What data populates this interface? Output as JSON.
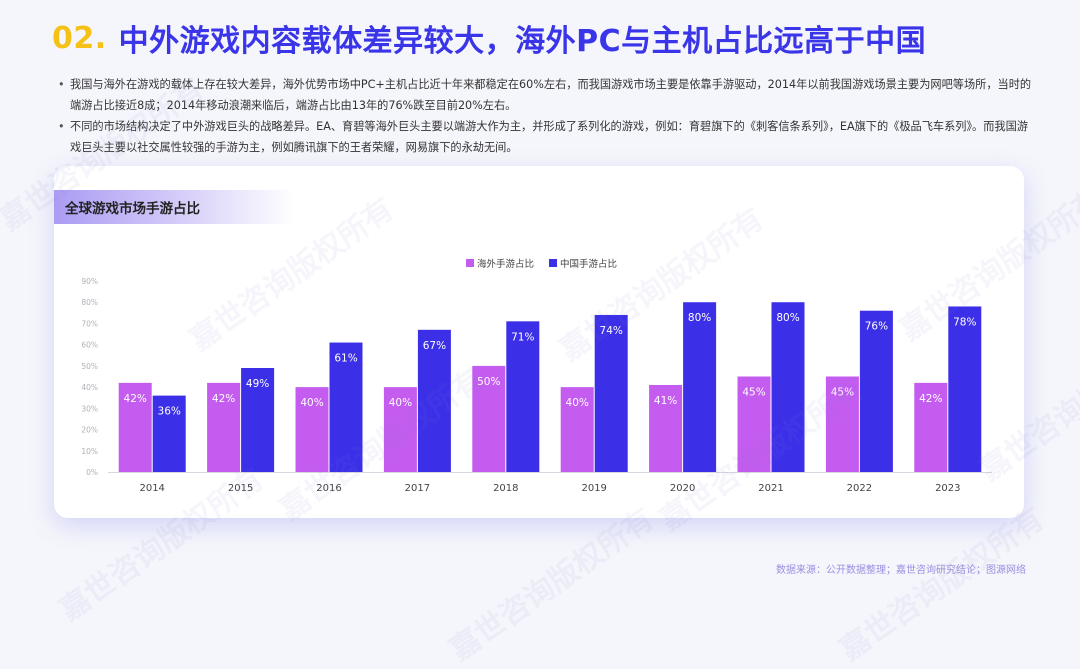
{
  "header": {
    "number": "02.",
    "title": "中外游戏内容载体差异较大，海外PC与主机占比远高于中国"
  },
  "bullets": [
    "我国与海外在游戏的载体上存在较大差异，海外优势市场中PC+主机占比近十年来都稳定在60%左右，而我国游戏市场主要是依靠手游驱动，2014年以前我国游戏场景主要为网吧等场所，当时的端游占比接近8成；2014年移动浪潮来临后，端游占比由13年的76%跌至目前20%左右。",
    "不同的市场结构决定了中外游戏巨头的战略差异。EA、育碧等海外巨头主要以端游大作为主，并形成了系列化的游戏，例如：育碧旗下的《刺客信条系列》，EA旗下的《极品飞车系列》。而我国游戏巨头主要以社交属性较强的手游为主，例如腾讯旗下的王者荣耀，网易旗下的永劫无间。"
  ],
  "card": {
    "title": "全球游戏市场手游占比"
  },
  "watermark": "嘉世咨询版权所有",
  "source": "数据来源：公开数据整理；嘉世咨询研究结论；图源网络",
  "colors": {
    "overseas": "#c45cf0",
    "china": "#3b30e8",
    "title_num": "#f5c116",
    "title_text": "#3a35e8"
  },
  "chart_data": {
    "type": "bar",
    "categories": [
      "2014",
      "2015",
      "2016",
      "2017",
      "2018",
      "2019",
      "2020",
      "2021",
      "2022",
      "2023"
    ],
    "series": [
      {
        "name": "海外手游占比",
        "values": [
          42,
          42,
          40,
          40,
          50,
          40,
          41,
          45,
          45,
          42
        ],
        "labels": [
          "42%",
          "42%",
          "40%",
          "40%",
          "50%",
          "40%",
          "41%",
          "45%",
          "45%",
          "42%"
        ]
      },
      {
        "name": "中国手游占比",
        "values": [
          36,
          49,
          61,
          67,
          71,
          74,
          80,
          80,
          76,
          78
        ],
        "labels": [
          "36%",
          "49%",
          "61%",
          "67%",
          "71%",
          "74%",
          "80%",
          "80%",
          "76%",
          "78%"
        ]
      }
    ],
    "y_ticks": [
      "0%",
      "10%",
      "20%",
      "30%",
      "40%",
      "50%",
      "60%",
      "70%",
      "80%",
      "90%"
    ],
    "ylim": [
      0,
      90
    ],
    "grid": false,
    "legend": "top-center"
  }
}
